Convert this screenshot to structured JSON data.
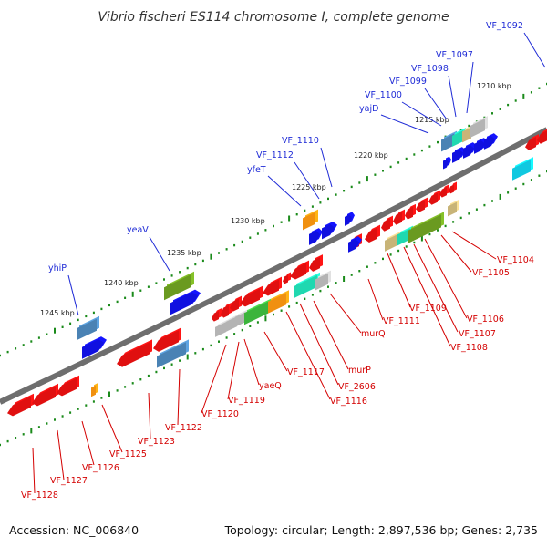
{
  "title": "Vibrio fischeri ES114 chromosome I, complete genome",
  "footer": {
    "accession": "Accession: NC_006840",
    "summary": "Topology: circular; Length: 2,897,536 bp; Genes: 2,735"
  },
  "scale_labels": [
    "1210 kbp",
    "1215 kbp",
    "1220 kbp",
    "1225 kbp",
    "1230 kbp",
    "1235 kbp",
    "1240 kbp",
    "1245 kbp"
  ],
  "top_labels": [
    "VF_1092",
    "VF_1097",
    "VF_1098",
    "VF_1099",
    "VF_1100",
    "yajD",
    "VF_1110",
    "VF_1112",
    "yfeT",
    "yeaV",
    "yhiP"
  ],
  "bottom_labels": [
    "VF_1104",
    "VF_1105",
    "VF_1106",
    "VF_1107",
    "VF_1108",
    "VF_1109",
    "VF_1111",
    "murQ",
    "murP",
    "VF_2606",
    "VF_1116",
    "VF_1117",
    "yaeQ",
    "VF_1119",
    "VF_1120",
    "VF_1122",
    "VF_1123",
    "VF_1125",
    "VF_1126",
    "VF_1127",
    "VF_1128"
  ],
  "colors": {
    "backbone": "#7a7a7a",
    "tick": "#1a8a1a",
    "top_label": "#1f2bd6",
    "bottom_label": "#d40000",
    "gene_red": "#e01010",
    "gene_blue": "#1010e0",
    "gene_steel": "#4a82b4",
    "gene_olive": "#6a9a20",
    "gene_green": "#3cb43c",
    "gene_teal": "#20d8b0",
    "gene_cyan": "#10c8e0",
    "gene_gray": "#b4b4b4",
    "gene_orange": "#f09010",
    "gene_tan": "#c8b478"
  }
}
